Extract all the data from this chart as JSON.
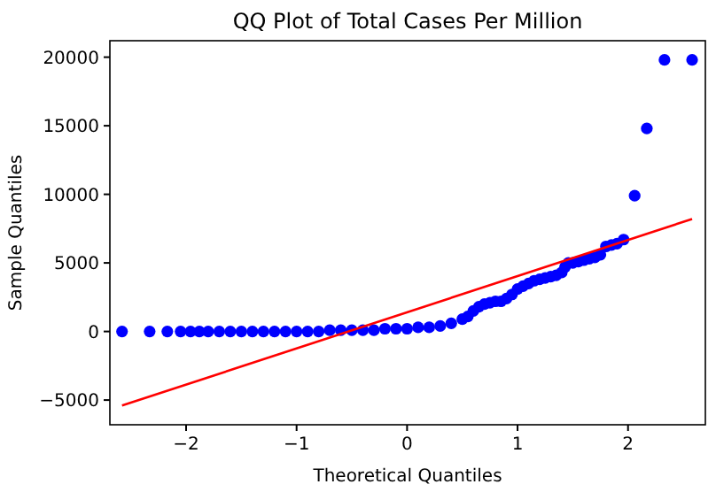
{
  "chart_data": {
    "type": "scatter",
    "title": "QQ Plot of Total Cases Per Million",
    "xlabel": "Theoretical Quantiles",
    "ylabel": "Sample Quantiles",
    "xlim": [
      -2.69,
      2.7
    ],
    "ylim": [
      -6800,
      21200
    ],
    "xticks": [
      {
        "value": -2,
        "label": "−2"
      },
      {
        "value": -1,
        "label": "−1"
      },
      0,
      1,
      2
    ],
    "yticks": [
      {
        "value": -5000,
        "label": "−5000"
      },
      0,
      5000,
      10000,
      15000,
      20000
    ],
    "grid": false,
    "series": [
      {
        "color": "#0000ff",
        "marker": "circle",
        "x": [
          -2.58,
          -2.33,
          -2.17,
          -2.05,
          -1.96,
          -1.88,
          -1.8,
          -1.7,
          -1.6,
          -1.5,
          -1.4,
          -1.3,
          -1.2,
          -1.1,
          -1.0,
          -0.9,
          -0.8,
          -0.7,
          -0.6,
          -0.5,
          -0.4,
          -0.3,
          -0.2,
          -0.1,
          0.0,
          0.1,
          0.2,
          0.3,
          0.4,
          0.5,
          0.55,
          0.6,
          0.65,
          0.7,
          0.75,
          0.8,
          0.85,
          0.9,
          0.95,
          1.0,
          1.05,
          1.1,
          1.15,
          1.2,
          1.25,
          1.3,
          1.35,
          1.4,
          1.43,
          1.46,
          1.5,
          1.55,
          1.6,
          1.65,
          1.7,
          1.75,
          1.8,
          1.85,
          1.9,
          1.96,
          2.06,
          2.17,
          2.33,
          2.58
        ],
        "values": [
          0,
          0,
          0,
          0,
          0,
          0,
          0,
          0,
          0,
          0,
          0,
          0,
          0,
          0,
          0,
          0,
          0,
          100,
          100,
          100,
          100,
          100,
          200,
          200,
          200,
          300,
          300,
          400,
          600,
          900,
          1100,
          1500,
          1800,
          2000,
          2100,
          2200,
          2200,
          2400,
          2700,
          3100,
          3300,
          3500,
          3700,
          3800,
          3900,
          4000,
          4100,
          4300,
          4700,
          5000,
          5000,
          5100,
          5200,
          5300,
          5400,
          5600,
          6200,
          6300,
          6400,
          6700,
          9900,
          14800,
          19800,
          19800
        ]
      },
      {
        "type": "line",
        "color": "#ff0000",
        "x": [
          -2.58,
          2.58
        ],
        "values": [
          -5400,
          8200
        ]
      }
    ]
  }
}
